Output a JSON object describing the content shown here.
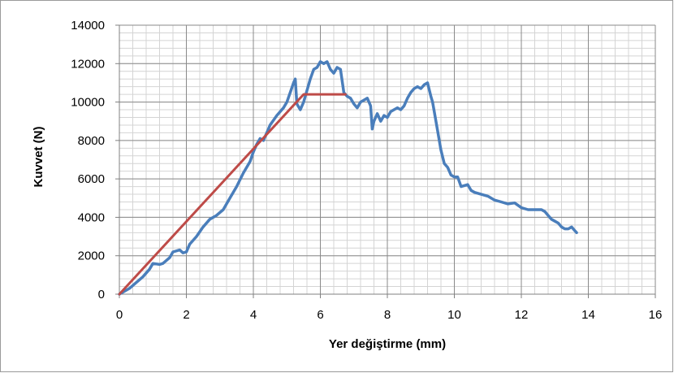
{
  "chart_data": {
    "type": "line",
    "title": "",
    "xlabel": "Yer değiştirme (mm)",
    "ylabel": "Kuvvet (N)",
    "xlim": [
      0,
      16
    ],
    "ylim": [
      0,
      14000
    ],
    "x_ticks": [
      0,
      2,
      4,
      6,
      8,
      10,
      12,
      14,
      16
    ],
    "y_ticks": [
      0,
      2000,
      4000,
      6000,
      8000,
      10000,
      12000,
      14000
    ],
    "grid": {
      "major": true,
      "minor": true
    },
    "legend": "none",
    "series": [
      {
        "color": "#4a7ebb",
        "x": [
          0,
          0.3,
          0.5,
          0.7,
          0.9,
          1.0,
          1.2,
          1.3,
          1.5,
          1.6,
          1.8,
          1.9,
          2.0,
          2.1,
          2.3,
          2.5,
          2.7,
          2.9,
          3.1,
          3.3,
          3.5,
          3.7,
          3.9,
          4.0,
          4.1,
          4.2,
          4.3,
          4.5,
          4.7,
          4.9,
          5.0,
          5.1,
          5.2,
          5.25,
          5.3,
          5.4,
          5.5,
          5.6,
          5.7,
          5.8,
          5.9,
          6.0,
          6.1,
          6.2,
          6.3,
          6.4,
          6.5,
          6.6,
          6.7,
          6.75,
          6.8,
          6.9,
          7.0,
          7.1,
          7.2,
          7.3,
          7.4,
          7.5,
          7.55,
          7.6,
          7.7,
          7.8,
          7.9,
          8.0,
          8.1,
          8.2,
          8.3,
          8.4,
          8.5,
          8.6,
          8.7,
          8.8,
          8.9,
          9.0,
          9.1,
          9.2,
          9.3,
          9.35,
          9.4,
          9.5,
          9.6,
          9.7,
          9.8,
          9.9,
          10.0,
          10.1,
          10.2,
          10.4,
          10.5,
          10.6,
          10.8,
          11.0,
          11.2,
          11.4,
          11.6,
          11.8,
          12.0,
          12.2,
          12.4,
          12.6,
          12.7,
          12.8,
          12.9,
          13.0,
          13.1,
          13.2,
          13.3,
          13.4,
          13.5,
          13.6,
          13.65
        ],
        "y": [
          0,
          300,
          600,
          900,
          1300,
          1600,
          1550,
          1600,
          1900,
          2200,
          2300,
          2150,
          2200,
          2600,
          3000,
          3500,
          3900,
          4100,
          4400,
          5000,
          5600,
          6300,
          6900,
          7400,
          7800,
          8100,
          8000,
          8800,
          9300,
          9700,
          10000,
          10500,
          11000,
          11200,
          9900,
          9600,
          10000,
          10600,
          11200,
          11700,
          11800,
          12100,
          12000,
          12100,
          11700,
          11500,
          11800,
          11700,
          10500,
          10400,
          10300,
          10200,
          9900,
          9700,
          10000,
          10100,
          10200,
          9800,
          8600,
          9000,
          9400,
          9000,
          9300,
          9200,
          9500,
          9600,
          9700,
          9600,
          9800,
          10200,
          10500,
          10700,
          10800,
          10700,
          10900,
          11000,
          10300,
          10000,
          9500,
          8500,
          7500,
          6800,
          6600,
          6200,
          6100,
          6100,
          5600,
          5700,
          5400,
          5300,
          5200,
          5100,
          4900,
          4800,
          4700,
          4750,
          4500,
          4400,
          4400,
          4400,
          4300,
          4100,
          3900,
          3800,
          3700,
          3500,
          3400,
          3400,
          3500,
          3300,
          3200
        ]
      },
      {
        "color": "#be4b48",
        "x": [
          0,
          5.5,
          6.75
        ],
        "y": [
          0,
          10400,
          10400
        ]
      }
    ]
  }
}
